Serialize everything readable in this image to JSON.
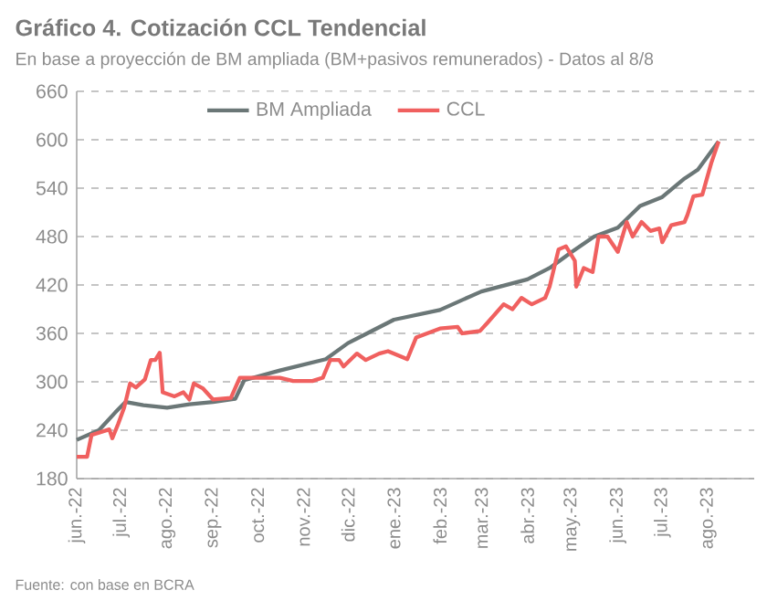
{
  "chart_data": {
    "type": "line",
    "title": "Gráfico 4. Cotización CCL Tendencial",
    "subtitle": "En base a proyección de BM ampliada (BM+pasivos remunerados) - Datos al 8/8",
    "annotations": [
      "Fuente: con base en BCRA"
    ],
    "xlim": [
      "2022-06-01",
      "2023-09-01"
    ],
    "ylim": [
      180,
      660
    ],
    "yticks": [
      180,
      240,
      300,
      360,
      420,
      480,
      540,
      600,
      660
    ],
    "xticks": [
      {
        "value": "2022-06-01",
        "label": "jun.-22"
      },
      {
        "value": "2022-07-01",
        "label": "jul.-22"
      },
      {
        "value": "2022-08-01",
        "label": "ago.-22"
      },
      {
        "value": "2022-09-01",
        "label": "sep.-22"
      },
      {
        "value": "2022-10-01",
        "label": "oct.-22"
      },
      {
        "value": "2022-11-01",
        "label": "nov.-22"
      },
      {
        "value": "2022-12-01",
        "label": "dic.-22"
      },
      {
        "value": "2023-01-01",
        "label": "ene.-23"
      },
      {
        "value": "2023-02-01",
        "label": "feb.-23"
      },
      {
        "value": "2023-03-01",
        "label": "mar.-23"
      },
      {
        "value": "2023-04-01",
        "label": "abr.-23"
      },
      {
        "value": "2023-05-01",
        "label": "may.-23"
      },
      {
        "value": "2023-06-01",
        "label": "jun.-23"
      },
      {
        "value": "2023-07-01",
        "label": "jul.-23"
      },
      {
        "value": "2023-08-01",
        "label": "ago.-23"
      }
    ],
    "grid": "y",
    "legend": "top",
    "marker": "none",
    "line_style": "solid",
    "series": [
      {
        "name": "BM Ampliada",
        "color": "#6b7777",
        "x": [
          "2022-06-01",
          "2022-06-16",
          "2022-06-27",
          "2022-07-04",
          "2022-07-16",
          "2022-08-01",
          "2022-08-16",
          "2022-09-01",
          "2022-09-16",
          "2022-09-22",
          "2022-10-16",
          "2022-11-16",
          "2022-12-01",
          "2022-12-16",
          "2023-01-01",
          "2023-02-01",
          "2023-03-01",
          "2023-04-01",
          "2023-04-16",
          "2023-05-01",
          "2023-05-16",
          "2023-06-01",
          "2023-06-16",
          "2023-07-01",
          "2023-07-16",
          "2023-07-25",
          "2023-08-08"
        ],
        "values": [
          228,
          240,
          262,
          275,
          271,
          268,
          272,
          275,
          279,
          302,
          314,
          328,
          348,
          362,
          377,
          389,
          412,
          427,
          441,
          461,
          480,
          491,
          518,
          529,
          552,
          563,
          598
        ]
      },
      {
        "name": "CCL",
        "color": "#f0605f",
        "x": [
          "2022-06-01",
          "2022-06-08",
          "2022-06-11",
          "2022-06-23",
          "2022-06-25",
          "2022-06-29",
          "2022-07-03",
          "2022-07-07",
          "2022-07-11",
          "2022-07-17",
          "2022-07-21",
          "2022-07-24",
          "2022-07-27",
          "2022-07-29",
          "2022-08-06",
          "2022-08-12",
          "2022-08-16",
          "2022-08-19",
          "2022-08-25",
          "2022-09-01",
          "2022-09-13",
          "2022-09-19",
          "2022-09-30",
          "2022-10-16",
          "2022-10-25",
          "2022-11-07",
          "2022-11-14",
          "2022-11-19",
          "2022-11-25",
          "2022-11-28",
          "2022-12-07",
          "2022-12-13",
          "2022-12-22",
          "2022-12-28",
          "2023-01-10",
          "2023-01-16",
          "2023-02-01",
          "2023-02-13",
          "2023-02-16",
          "2023-02-28",
          "2023-03-05",
          "2023-03-16",
          "2023-03-22",
          "2023-03-28",
          "2023-04-04",
          "2023-04-13",
          "2023-04-16",
          "2023-04-22",
          "2023-04-27",
          "2023-05-03",
          "2023-05-04",
          "2023-05-09",
          "2023-05-15",
          "2023-05-19",
          "2023-05-25",
          "2023-06-01",
          "2023-06-07",
          "2023-06-11",
          "2023-06-17",
          "2023-06-23",
          "2023-06-29",
          "2023-07-01",
          "2023-07-07",
          "2023-07-16",
          "2023-07-18",
          "2023-07-22",
          "2023-07-28",
          "2023-08-03",
          "2023-08-08"
        ],
        "values": [
          207,
          207,
          234,
          241,
          230,
          248,
          268,
          298,
          293,
          303,
          327,
          327,
          336,
          287,
          282,
          287,
          278,
          298,
          292,
          278,
          280,
          305,
          305,
          305,
          301,
          301,
          305,
          327,
          327,
          319,
          335,
          327,
          335,
          338,
          328,
          355,
          366,
          368,
          360,
          363,
          373,
          396,
          390,
          404,
          396,
          404,
          418,
          464,
          468,
          450,
          418,
          441,
          436,
          480,
          480,
          461,
          498,
          480,
          498,
          487,
          490,
          473,
          494,
          498,
          507,
          530,
          532,
          571,
          598
        ]
      }
    ]
  }
}
